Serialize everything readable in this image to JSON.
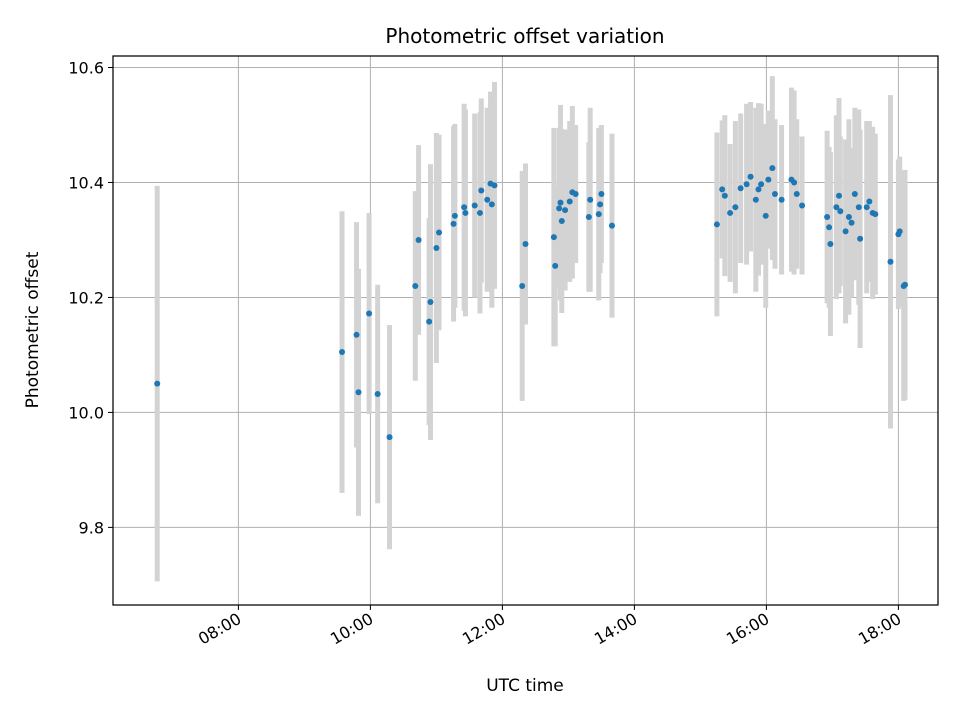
{
  "chart_data": {
    "type": "scatter",
    "title": "Photometric offset variation",
    "xlabel": "UTC time",
    "ylabel": "Photometric offset",
    "x_unit": "hours UTC",
    "xlim": [
      6.1,
      18.6
    ],
    "ylim": [
      9.665,
      10.62
    ],
    "xticks": [
      8,
      10,
      12,
      14,
      16,
      18
    ],
    "xtick_labels": [
      "08:00",
      "10:00",
      "12:00",
      "14:00",
      "16:00",
      "18:00"
    ],
    "yticks": [
      9.8,
      10.0,
      10.2,
      10.4,
      10.6
    ],
    "ytick_labels": [
      "9.8",
      "10.0",
      "10.2",
      "10.4",
      "10.6"
    ],
    "grid": true,
    "colors": {
      "point": "#1f77b4",
      "errorbar": "#d3d3d3",
      "grid": "#b0b0b0"
    },
    "series": [
      {
        "marker": "dot",
        "error_bars": "symmetric y",
        "x": [
          6.77,
          9.57,
          9.79,
          9.82,
          9.98,
          10.11,
          10.29,
          10.68,
          10.73,
          10.89,
          10.91,
          11.0,
          11.04,
          11.26,
          11.28,
          11.42,
          11.44,
          11.58,
          11.66,
          11.68,
          11.77,
          11.82,
          11.84,
          11.88,
          12.3,
          12.35,
          12.78,
          12.8,
          12.86,
          12.88,
          12.9,
          12.95,
          13.02,
          13.06,
          13.11,
          13.31,
          13.33,
          13.46,
          13.48,
          13.5,
          13.66,
          15.25,
          15.33,
          15.37,
          15.45,
          15.53,
          15.61,
          15.7,
          15.76,
          15.84,
          15.88,
          15.92,
          15.99,
          16.03,
          16.09,
          16.13,
          16.23,
          16.38,
          16.42,
          16.46,
          16.54,
          16.92,
          16.95,
          16.97,
          17.06,
          17.1,
          17.12,
          17.2,
          17.25,
          17.29,
          17.34,
          17.4,
          17.42,
          17.52,
          17.56,
          17.61,
          17.65,
          17.88,
          18.0,
          18.02,
          18.08,
          18.1
        ],
        "y": [
          10.05,
          10.105,
          10.135,
          10.035,
          10.172,
          10.032,
          9.957,
          10.22,
          10.3,
          10.158,
          10.192,
          10.286,
          10.313,
          10.328,
          10.342,
          10.357,
          10.347,
          10.36,
          10.347,
          10.386,
          10.37,
          10.398,
          10.362,
          10.395,
          10.22,
          10.293,
          10.305,
          10.255,
          10.355,
          10.365,
          10.333,
          10.352,
          10.367,
          10.383,
          10.38,
          10.34,
          10.37,
          10.345,
          10.362,
          10.38,
          10.325,
          10.327,
          10.388,
          10.377,
          10.347,
          10.357,
          10.39,
          10.397,
          10.41,
          10.37,
          10.388,
          10.397,
          10.342,
          10.405,
          10.425,
          10.38,
          10.37,
          10.405,
          10.4,
          10.38,
          10.36,
          10.34,
          10.322,
          10.293,
          10.357,
          10.377,
          10.35,
          10.315,
          10.34,
          10.33,
          10.38,
          10.357,
          10.302,
          10.357,
          10.367,
          10.347,
          10.345,
          10.262,
          10.31,
          10.315,
          10.22,
          10.222
        ],
        "yerr": [
          0.344,
          0.245,
          0.196,
          0.215,
          0.175,
          0.19,
          0.195,
          0.165,
          0.165,
          0.18,
          0.24,
          0.2,
          0.17,
          0.17,
          0.16,
          0.18,
          0.18,
          0.16,
          0.175,
          0.16,
          0.16,
          0.16,
          0.18,
          0.18,
          0.2,
          0.14,
          0.19,
          0.14,
          0.14,
          0.17,
          0.16,
          0.14,
          0.14,
          0.15,
          0.12,
          0.13,
          0.16,
          0.15,
          0.12,
          0.12,
          0.16,
          0.16,
          0.12,
          0.14,
          0.12,
          0.15,
          0.13,
          0.14,
          0.13,
          0.16,
          0.15,
          0.14,
          0.16,
          0.12,
          0.16,
          0.13,
          0.13,
          0.16,
          0.16,
          0.13,
          0.12,
          0.15,
          0.14,
          0.16,
          0.16,
          0.17,
          0.13,
          0.16,
          0.17,
          0.13,
          0.15,
          0.17,
          0.19,
          0.15,
          0.14,
          0.15,
          0.14,
          0.29,
          0.13,
          0.13,
          0.2,
          0.2
        ]
      }
    ]
  }
}
